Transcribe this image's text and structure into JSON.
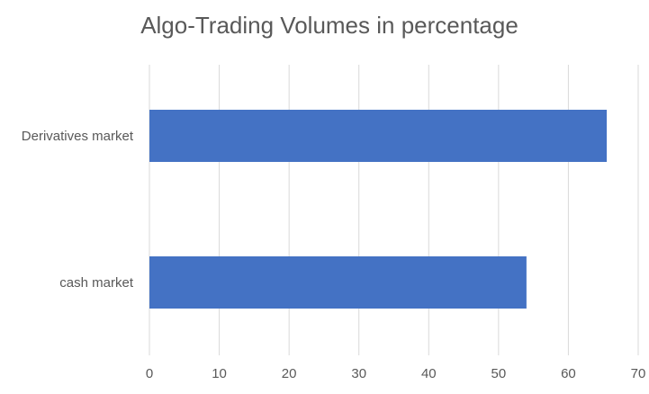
{
  "chart_data": {
    "type": "bar",
    "orientation": "horizontal",
    "title": "Algo-Trading Volumes in percentage",
    "categories": [
      "Derivatives market",
      "cash market"
    ],
    "values": [
      65.5,
      54
    ],
    "xlabel": "",
    "ylabel": "",
    "xlim": [
      0,
      70
    ],
    "xticks": [
      "0",
      "10",
      "20",
      "30",
      "40",
      "50",
      "60",
      "70"
    ],
    "grid": true,
    "legend": "none",
    "bar_color": "#4472c4"
  }
}
